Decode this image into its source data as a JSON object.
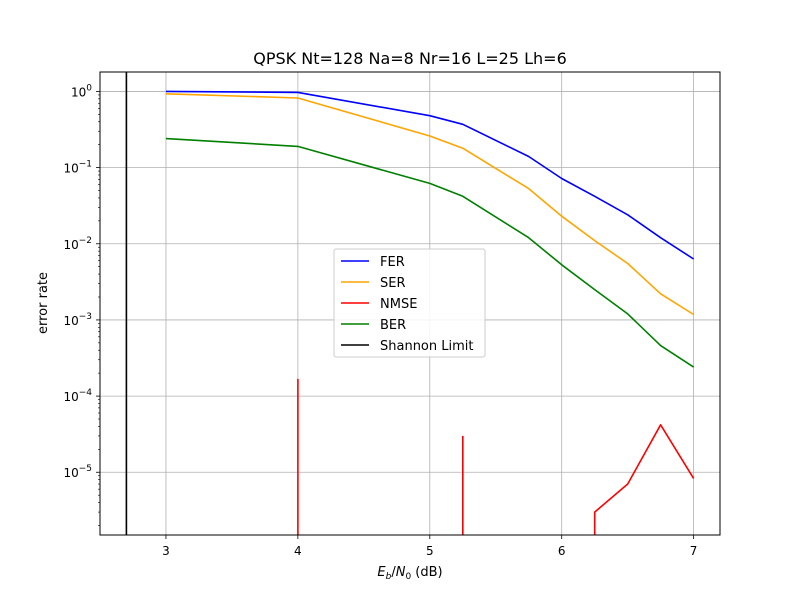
{
  "chart_data": {
    "type": "line",
    "title": "QPSK Nt=128 Na=8 Nr=16 L=25 Lh=6",
    "xlabel": "E_b/N_0 (dB)",
    "xlabel_parts": {
      "e": "E",
      "b": "b",
      "slash": "/",
      "n": "N",
      "zero": "0",
      "unit": " (dB)"
    },
    "ylabel": "error rate",
    "yscale": "log",
    "xlim": [
      2.5,
      7.2
    ],
    "ylim": [
      1.5e-06,
      1.8
    ],
    "grid": true,
    "legend_position": "center",
    "x_ticks": [
      {
        "value": 3,
        "label": "3"
      },
      {
        "value": 4,
        "label": "4"
      },
      {
        "value": 5,
        "label": "5"
      },
      {
        "value": 6,
        "label": "6"
      },
      {
        "value": 7,
        "label": "7"
      }
    ],
    "y_ticks": [
      {
        "exp": -5,
        "base": "10",
        "sup": "−5"
      },
      {
        "exp": -4,
        "base": "10",
        "sup": "−4"
      },
      {
        "exp": -3,
        "base": "10",
        "sup": "−3"
      },
      {
        "exp": -2,
        "base": "10",
        "sup": "−2"
      },
      {
        "exp": -1,
        "base": "10",
        "sup": "−1"
      },
      {
        "exp": 0,
        "base": "10",
        "sup": "0"
      }
    ],
    "series": [
      {
        "name": "FER",
        "color": "#0000ff",
        "segments": [
          [
            [
              3,
              1.0
            ],
            [
              4,
              0.97
            ],
            [
              5,
              0.48
            ],
            [
              5.25,
              0.37
            ],
            [
              5.75,
              0.14
            ],
            [
              6,
              0.072
            ],
            [
              6.25,
              0.042
            ],
            [
              6.5,
              0.024
            ],
            [
              6.75,
              0.012
            ],
            [
              7,
              0.0063
            ]
          ]
        ]
      },
      {
        "name": "SER",
        "color": "#ffa500",
        "segments": [
          [
            [
              3,
              0.93
            ],
            [
              4,
              0.82
            ],
            [
              5,
              0.26
            ],
            [
              5.25,
              0.18
            ],
            [
              5.75,
              0.053
            ],
            [
              6,
              0.023
            ],
            [
              6.25,
              0.011
            ],
            [
              6.5,
              0.0055
            ],
            [
              6.75,
              0.0022
            ],
            [
              7,
              0.00118
            ]
          ]
        ]
      },
      {
        "name": "NMSE",
        "color": "#ff0000",
        "segments": [
          [
            [
              4,
              1.5e-06
            ],
            [
              4,
              0.000168
            ]
          ],
          [
            [
              5.25,
              1.5e-06
            ],
            [
              5.25,
              3e-05
            ]
          ],
          [
            [
              6.25,
              1.5e-06
            ],
            [
              6.25,
              3e-06
            ],
            [
              6.5,
              7e-06
            ],
            [
              6.75,
              4.2e-05
            ],
            [
              7,
              8.3e-06
            ]
          ]
        ]
      },
      {
        "name": "BER",
        "color": "#008000",
        "segments": [
          [
            [
              3,
              0.24
            ],
            [
              4,
              0.19
            ],
            [
              5,
              0.062
            ],
            [
              5.25,
              0.042
            ],
            [
              5.75,
              0.012
            ],
            [
              6,
              0.0053
            ],
            [
              6.25,
              0.0025
            ],
            [
              6.5,
              0.0012
            ],
            [
              6.75,
              0.00046
            ],
            [
              7,
              0.00024
            ]
          ]
        ]
      },
      {
        "name": "Shannon Limit",
        "color": "#000000",
        "segments": [
          [
            [
              2.7,
              1.5e-06
            ],
            [
              2.7,
              1.8
            ]
          ]
        ]
      }
    ]
  }
}
